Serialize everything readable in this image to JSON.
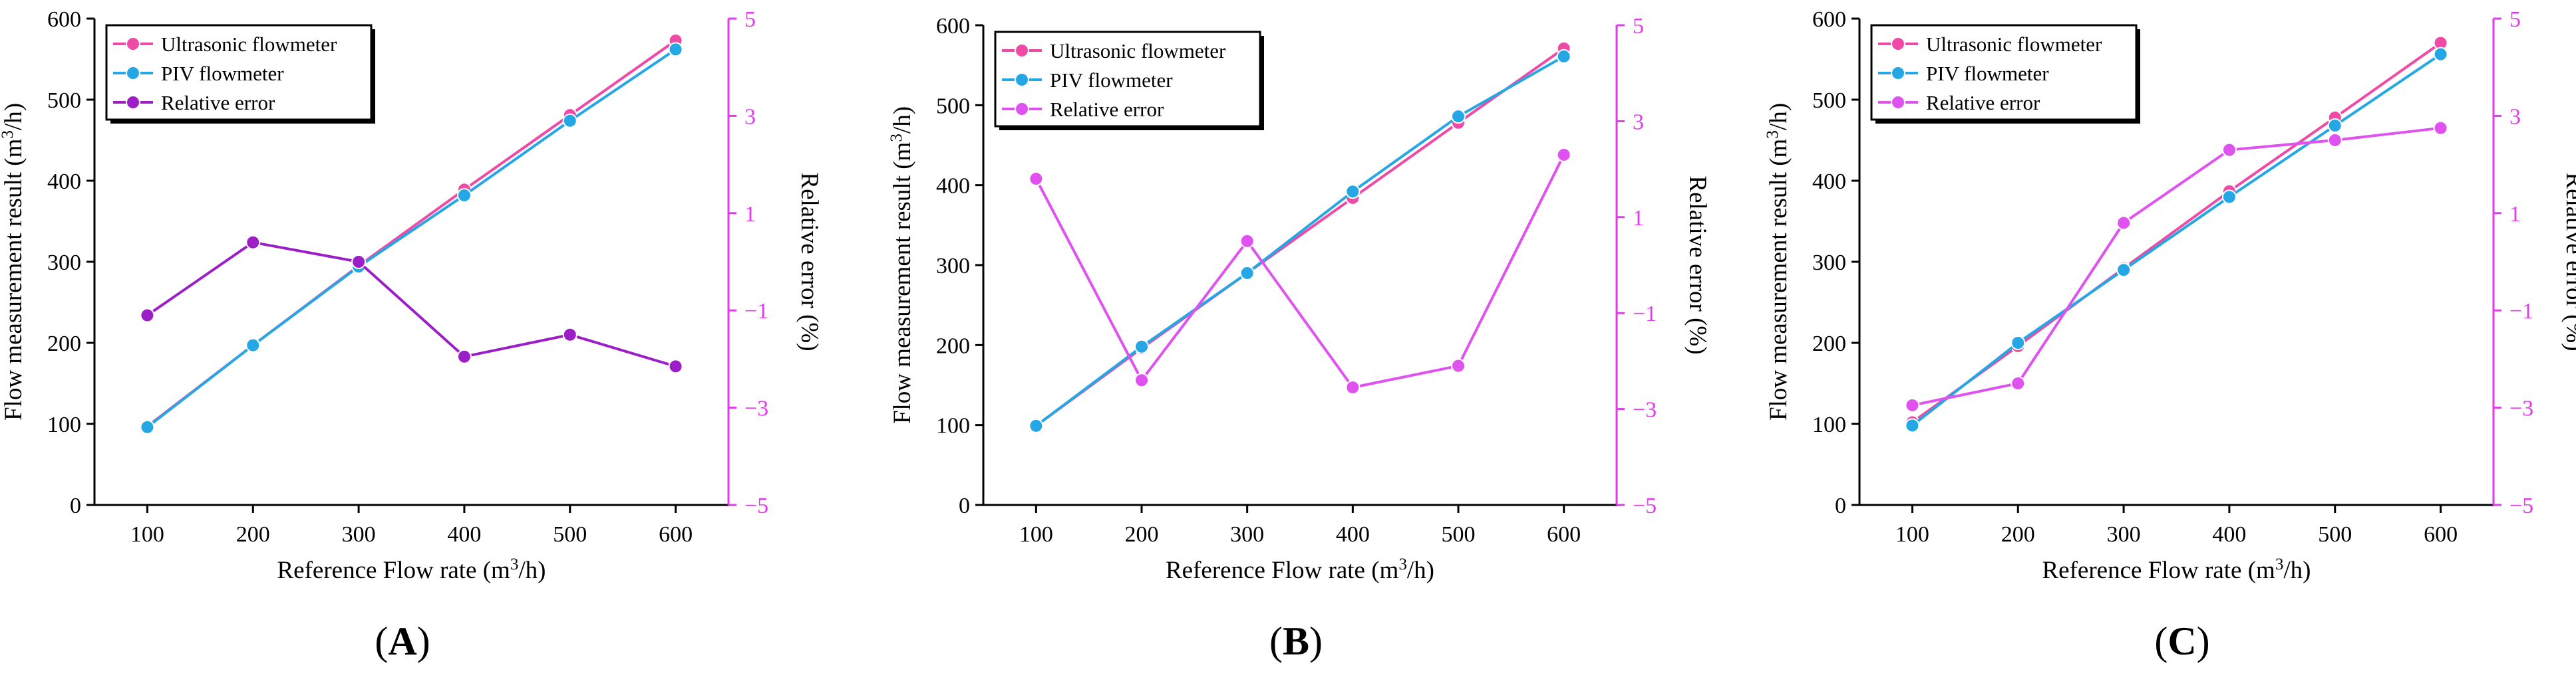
{
  "figure": {
    "colors": {
      "ultrasonic": "#ee4aa6",
      "piv": "#25a7e6",
      "relative_error": "#e052ef",
      "relative_error_A": "#9b1ec7",
      "right_axis": "#e13aed",
      "axis": "#000000"
    }
  },
  "chart_data": [
    {
      "type": "line",
      "panel_label": "(A)",
      "panel_letter": "A",
      "xlabel": "Reference Flow rate (m³/h)",
      "ylabel": "Flow measurement result (m³/h)",
      "y2label": "Relative error (%)",
      "x": [
        100,
        200,
        300,
        400,
        500,
        600
      ],
      "x_ticks": [
        "100",
        "200",
        "300",
        "400",
        "500",
        "600"
      ],
      "xlim": [
        50,
        650
      ],
      "ylim": [
        0,
        600
      ],
      "y_ticks": [
        "0",
        "100",
        "200",
        "300",
        "400",
        "500",
        "600"
      ],
      "y2lim": [
        -5,
        5
      ],
      "y2_ticks": [
        "−5",
        "−3",
        "−1",
        "1",
        "3",
        "5"
      ],
      "legend_position": "top-left",
      "series": [
        {
          "name": "Ultrasonic flowmeter",
          "axis": "left",
          "color": "#ee4aa6",
          "values": [
            97,
            197,
            295,
            389,
            481,
            573
          ]
        },
        {
          "name": "PIV flowmeter",
          "axis": "left",
          "color": "#25a7e6",
          "values": [
            96,
            197,
            294,
            382,
            474,
            562
          ]
        },
        {
          "name": "Relative error",
          "axis": "right",
          "color": "#9b1ec7",
          "values": [
            -1.1,
            0.4,
            -0.0,
            -1.95,
            -1.5,
            -2.15
          ]
        }
      ]
    },
    {
      "type": "line",
      "panel_label": "(B)",
      "panel_letter": "B",
      "xlabel": "Reference Flow rate (m³/h)",
      "ylabel": "Flow measurement result (m³/h)",
      "y2label": "Relative error (%)",
      "x": [
        100,
        200,
        300,
        400,
        500,
        600
      ],
      "x_ticks": [
        "100",
        "200",
        "300",
        "400",
        "500",
        "600"
      ],
      "xlim": [
        50,
        650
      ],
      "ylim": [
        0,
        600
      ],
      "y_ticks": [
        "0",
        "100",
        "200",
        "300",
        "400",
        "500",
        "600"
      ],
      "y2lim": [
        -5,
        5
      ],
      "y2_ticks": [
        "−5",
        "−3",
        "−1",
        "1",
        "3",
        "5"
      ],
      "legend_position": "top-left",
      "series": [
        {
          "name": "Ultrasonic flowmeter",
          "axis": "left",
          "color": "#ee4aa6",
          "values": [
            99,
            196,
            290,
            384,
            478,
            571
          ]
        },
        {
          "name": "PIV flowmeter",
          "axis": "left",
          "color": "#25a7e6",
          "values": [
            99,
            198,
            290,
            392,
            486,
            561
          ]
        },
        {
          "name": "Relative error",
          "axis": "right",
          "color": "#e052ef",
          "values": [
            1.8,
            -2.4,
            0.5,
            -2.55,
            -2.1,
            2.3
          ]
        }
      ]
    },
    {
      "type": "line",
      "panel_label": "(C)",
      "panel_letter": "C",
      "xlabel": "Reference Flow rate (m³/h)",
      "ylabel": "Flow measurement result (m³/h)",
      "y2label": "Relative error (%)",
      "x": [
        100,
        200,
        300,
        400,
        500,
        600
      ],
      "x_ticks": [
        "100",
        "200",
        "300",
        "400",
        "500",
        "600"
      ],
      "xlim": [
        50,
        650
      ],
      "ylim": [
        0,
        600
      ],
      "y_ticks": [
        "0",
        "100",
        "200",
        "300",
        "400",
        "500",
        "600"
      ],
      "y2lim": [
        -5,
        5
      ],
      "y2_ticks": [
        "−5",
        "−3",
        "−1",
        "1",
        "3",
        "5"
      ],
      "legend_position": "top-left",
      "series": [
        {
          "name": "Ultrasonic flowmeter",
          "axis": "left",
          "color": "#ee4aa6",
          "values": [
            102,
            196,
            292,
            387,
            478,
            570
          ]
        },
        {
          "name": "PIV flowmeter",
          "axis": "left",
          "color": "#25a7e6",
          "values": [
            98,
            200,
            290,
            380,
            468,
            556
          ]
        },
        {
          "name": "Relative error",
          "axis": "right",
          "color": "#e052ef",
          "values": [
            -2.95,
            -2.5,
            0.8,
            2.3,
            2.5,
            2.75
          ]
        }
      ]
    }
  ]
}
